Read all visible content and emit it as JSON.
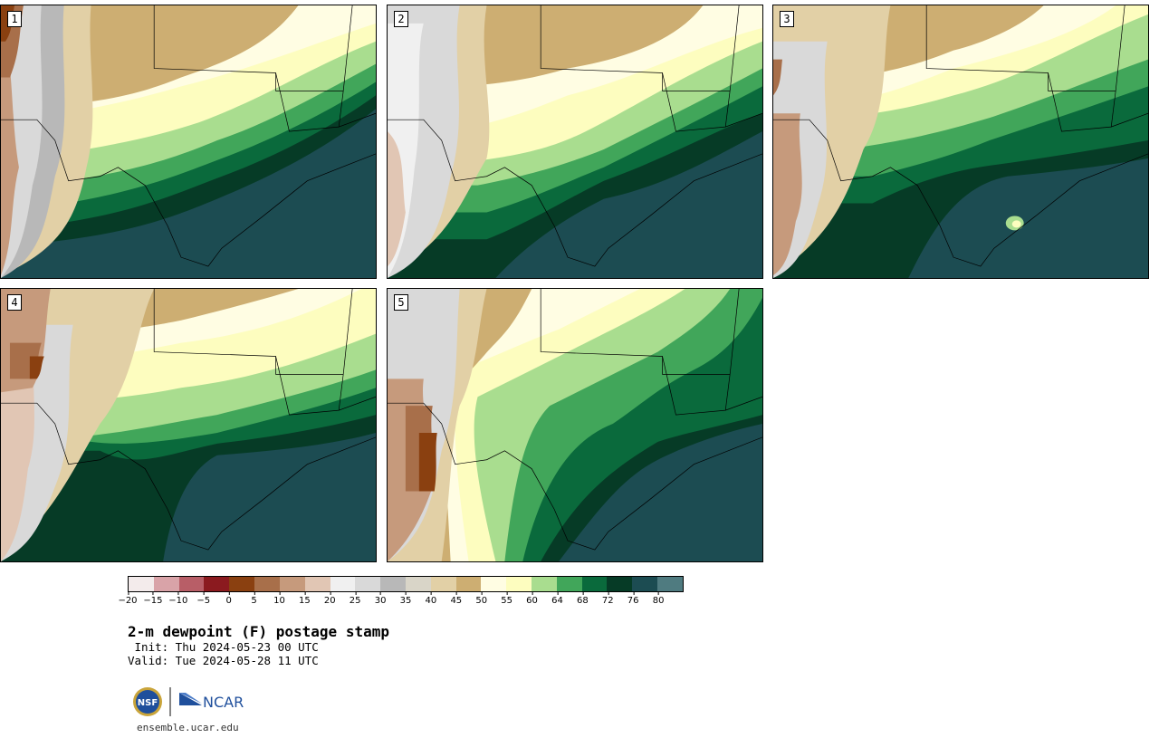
{
  "panels": [
    {
      "label": "1"
    },
    {
      "label": "2"
    },
    {
      "label": "3"
    },
    {
      "label": "4"
    },
    {
      "label": "5"
    }
  ],
  "colorbar": {
    "colors": [
      "#f3ebeb",
      "#d9a3a8",
      "#b85e67",
      "#8b1a1f",
      "#8a4010",
      "#a86f4a",
      "#c69a7c",
      "#e1c6b4",
      "#f0f0f0",
      "#d9d9d9",
      "#b8b8b8",
      "#d9d5c8",
      "#e2d0a6",
      "#cdae72",
      "#fffde3",
      "#fdfdbf",
      "#a9dd8f",
      "#41a65a",
      "#0a6a3c",
      "#063b26",
      "#1c4c52",
      "#4f7b80"
    ],
    "tick_labels": [
      "−20",
      "−15",
      "−10",
      "−5",
      "0",
      "5",
      "10",
      "15",
      "20",
      "25",
      "30",
      "35",
      "40",
      "45",
      "50",
      "55",
      "60",
      "64",
      "68",
      "72",
      "76",
      "80"
    ]
  },
  "title": "2-m dewpoint (F) postage stamp",
  "init_line": " Init: Thu 2024-05-23 00 UTC",
  "valid_line": "Valid: Tue 2024-05-28 11 UTC",
  "logos": {
    "nsf": "NSF",
    "ncar": "NCAR"
  },
  "site": "ensemble.ucar.edu"
}
